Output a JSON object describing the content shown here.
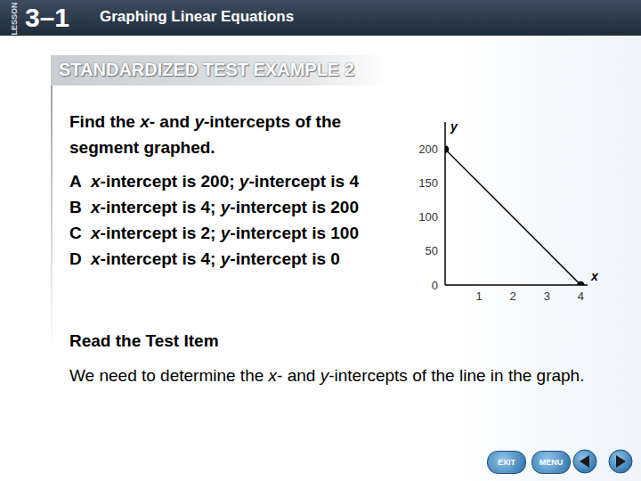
{
  "header": {
    "lesson": "LESSON",
    "number": "3–1",
    "title": "Graphing Linear Equations"
  },
  "banner": "STANDARDIZED TEST EXAMPLE 2",
  "question": "Find the x- and y-intercepts of the segment graphed.",
  "options": [
    {
      "letter": "A",
      "text": "x-intercept is 200; y-intercept is 4"
    },
    {
      "letter": "B",
      "text": "x-intercept is 4; y-intercept is 200"
    },
    {
      "letter": "C",
      "text": "x-intercept is 2; y-intercept is 100"
    },
    {
      "letter": "D",
      "text": "x-intercept is 4; y-intercept is 0"
    }
  ],
  "section": {
    "heading": "Read the Test Item",
    "text": "We need to determine the x- and y-intercepts of the line in the graph."
  },
  "nav": [
    "EXIT",
    "MENU"
  ],
  "chart_data": {
    "type": "line",
    "x": [
      0,
      4
    ],
    "values": [
      200,
      0
    ],
    "color": "#000000",
    "marker": "circle",
    "xlim": [
      0,
      4.2
    ],
    "ylim": [
      0,
      240
    ],
    "xticks": [
      1,
      2,
      3,
      4
    ],
    "yticks": [
      0,
      50,
      100,
      150,
      200
    ],
    "x_label": "x",
    "y_label": "y",
    "grid": false
  }
}
